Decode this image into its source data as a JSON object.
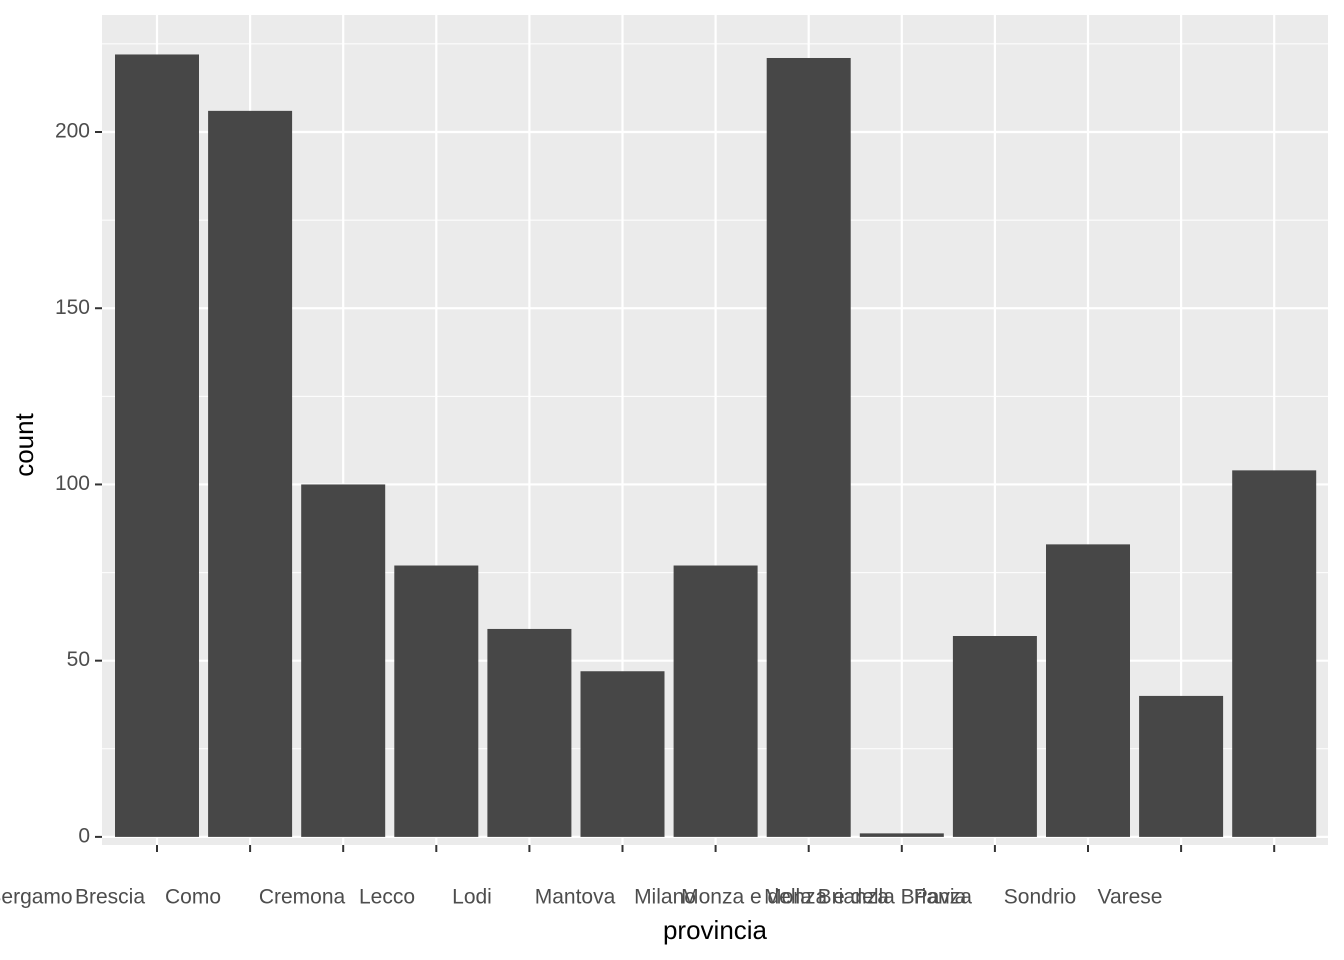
{
  "chart_data": {
    "type": "bar",
    "x_label": "provincia",
    "y_label": "count",
    "categories": [
      "Bergamo",
      "Brescia",
      "Como",
      "Cremona",
      "Lecco",
      "Lodi",
      "Mantova",
      "Milano",
      "Monza e della Brianza",
      "Monza e della Brianza",
      "Pavia",
      "Sondrio",
      "Varese"
    ],
    "values": [
      222,
      206,
      100,
      77,
      59,
      47,
      77,
      221,
      1,
      57,
      83,
      40,
      104
    ],
    "color": "#474747",
    "ylim": [
      -2.3,
      233.2
    ],
    "yticks": [
      0,
      50,
      100,
      150,
      200
    ],
    "grid": true
  }
}
